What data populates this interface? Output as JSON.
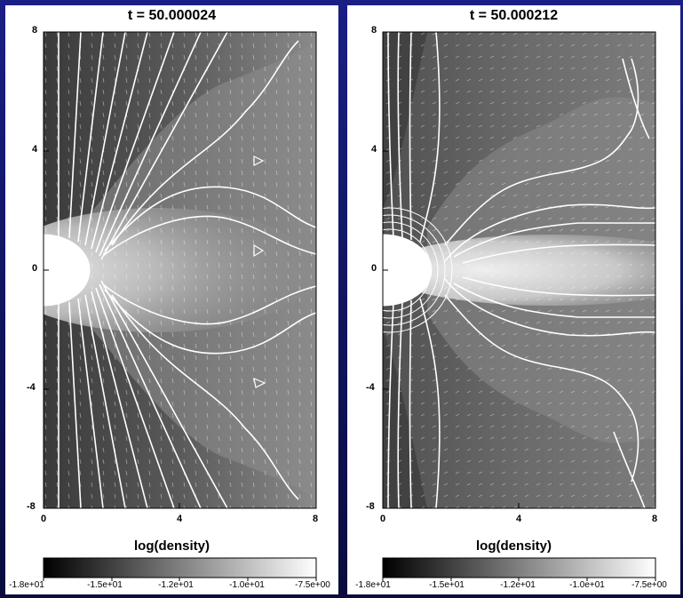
{
  "panels": [
    {
      "title": "t = 50.000024",
      "y_ticks": [
        "8",
        "4",
        "0",
        "-4",
        "-8"
      ],
      "x_ticks": [
        "0",
        "4",
        "8"
      ],
      "colorbar_title": "log(density)",
      "colorbar_ticks": [
        "-1.8e+01",
        "-1.5e+01",
        "-1.2e+01",
        "-1.0e+01",
        "-7.5e+00"
      ]
    },
    {
      "title": "t = 50.000212",
      "y_ticks": [
        "8",
        "4",
        "0",
        "-4",
        "-8"
      ],
      "x_ticks": [
        "0",
        "4",
        "8"
      ],
      "colorbar_title": "log(density)",
      "colorbar_ticks": [
        "-1.8e+01",
        "-1.5e+01",
        "-1.2e+01",
        "-1.0e+01",
        "-7.5e+00"
      ]
    }
  ],
  "colors": {
    "background": "#141870",
    "panel": "#ffffff",
    "field_lines": "#ffffff",
    "density_low": "#000000",
    "density_high": "#ffffff"
  }
}
